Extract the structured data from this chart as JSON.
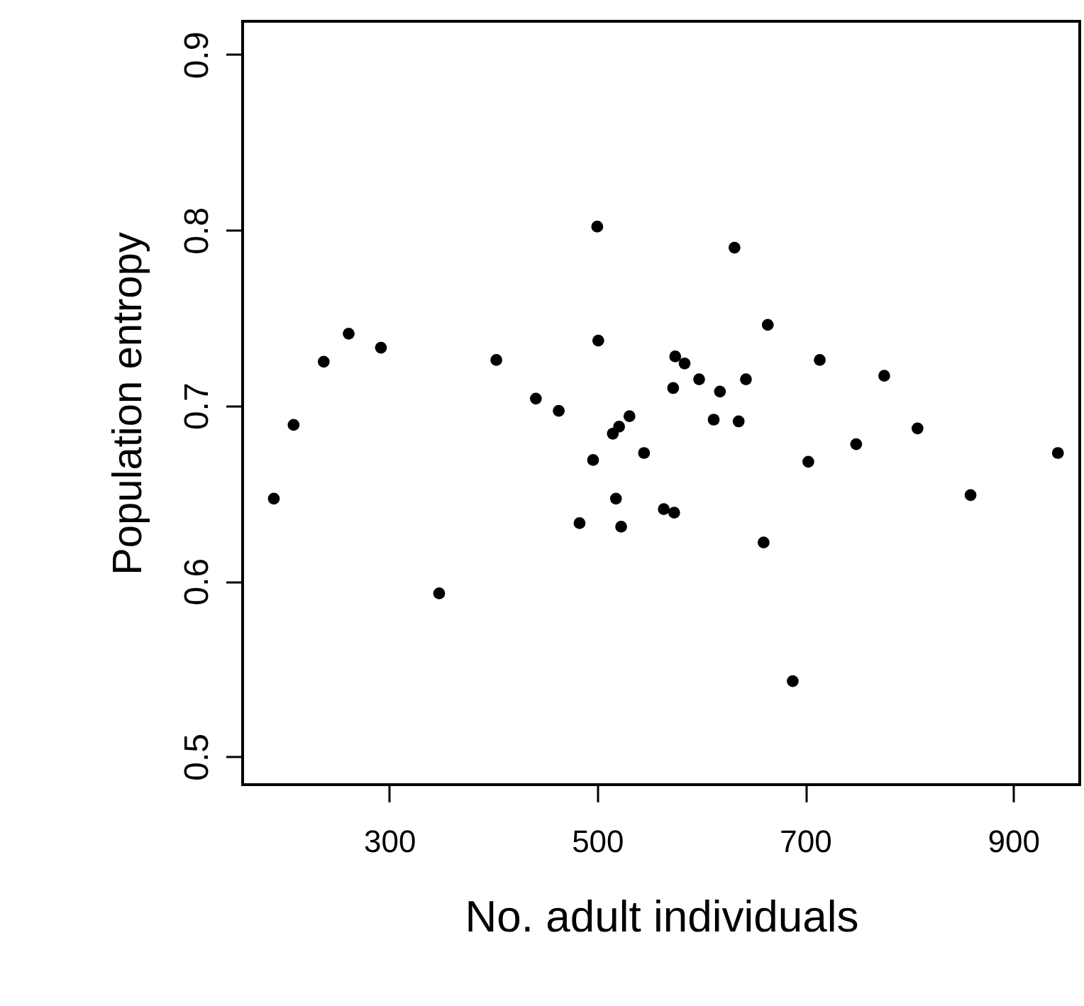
{
  "chart_data": {
    "type": "scatter",
    "xlabel": "No. adult individuals",
    "ylabel": "Population entropy",
    "xlim": [
      159,
      964
    ],
    "ylim": [
      0.484,
      0.919
    ],
    "xticks": [
      300,
      500,
      700,
      900
    ],
    "yticks": [
      0.5,
      0.6,
      0.7,
      0.8,
      0.9
    ],
    "grid": false,
    "legend": false,
    "marker": "circle",
    "series": [
      {
        "color": "#000000",
        "x": [
          189,
          208,
          237,
          261,
          292,
          348,
          403,
          441,
          463,
          500,
          501,
          531,
          521,
          515,
          496,
          545,
          518,
          483,
          523,
          632,
          664,
          575,
          584,
          714,
          598,
          573,
          618,
          643,
          776,
          612,
          636,
          808,
          749,
          703,
          943,
          859,
          564,
          574,
          660,
          688
        ],
        "values": [
          0.647,
          0.689,
          0.725,
          0.741,
          0.733,
          0.593,
          0.726,
          0.704,
          0.697,
          0.802,
          0.737,
          0.694,
          0.688,
          0.684,
          0.669,
          0.673,
          0.647,
          0.633,
          0.631,
          0.79,
          0.746,
          0.728,
          0.724,
          0.726,
          0.715,
          0.71,
          0.708,
          0.715,
          0.717,
          0.692,
          0.691,
          0.687,
          0.678,
          0.668,
          0.673,
          0.649,
          0.641,
          0.639,
          0.622,
          0.543
        ]
      }
    ]
  }
}
